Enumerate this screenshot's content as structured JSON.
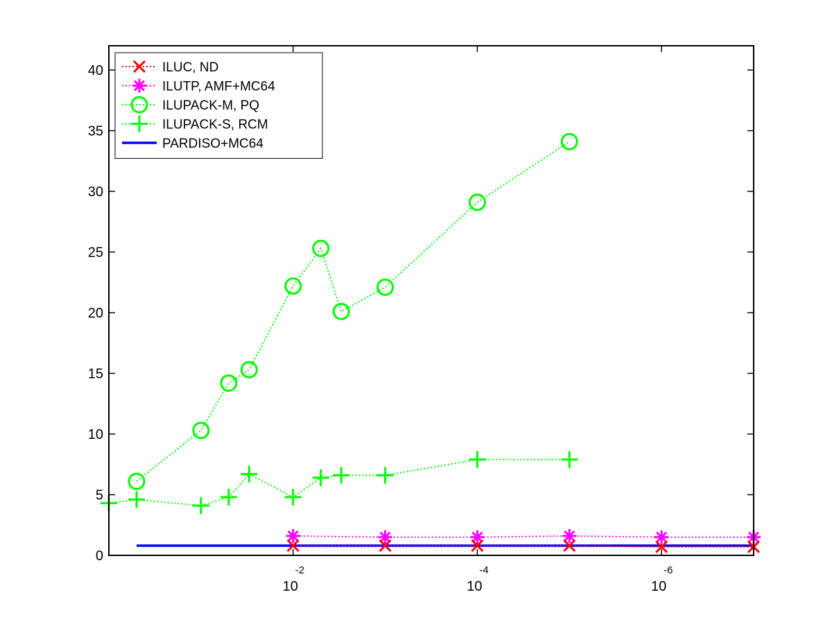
{
  "chart_data": {
    "type": "line",
    "title": "",
    "xlabel": "",
    "ylabel": "",
    "x_scale": "log",
    "x_reversed": true,
    "xlim": [
      1,
      1e-07
    ],
    "ylim": [
      0,
      42
    ],
    "grid": false,
    "legend_position": "top-left",
    "x_ticks": [
      {
        "value": 0.01,
        "base": "10",
        "exponent": "-2"
      },
      {
        "value": 0.0001,
        "base": "10",
        "exponent": "-4"
      },
      {
        "value": 1e-06,
        "base": "10",
        "exponent": "-6"
      }
    ],
    "y_ticks": [
      0,
      5,
      10,
      15,
      20,
      25,
      30,
      35,
      40
    ],
    "series": [
      {
        "name": "ILUC,  ND",
        "marker": "x",
        "line_style": "dotted",
        "color": "#ff0000",
        "x": [
          0.01,
          0.001,
          0.0001,
          1e-05,
          1e-06,
          1e-07
        ],
        "y": [
          0.8,
          0.8,
          0.8,
          0.8,
          0.7,
          0.7
        ]
      },
      {
        "name": "ILUTP, AMF+MC64",
        "marker": "asterisk",
        "line_style": "dotted",
        "color": "#ff00ff",
        "x": [
          0.01,
          0.001,
          0.0001,
          1e-05,
          1e-06,
          1e-07
        ],
        "y": [
          1.6,
          1.5,
          1.5,
          1.6,
          1.5,
          1.5
        ]
      },
      {
        "name": "ILUPACK-M, PQ",
        "marker": "circle",
        "line_style": "dotted",
        "color": "#00ff00",
        "x": [
          0.5,
          0.1,
          0.05,
          0.03,
          0.01,
          0.005,
          0.003,
          0.001,
          0.0001,
          1e-05
        ],
        "y": [
          6.1,
          10.3,
          14.2,
          15.3,
          22.2,
          25.3,
          20.1,
          22.1,
          29.1,
          34.1
        ]
      },
      {
        "name": "ILUPACK-S, RCM",
        "marker": "plus",
        "line_style": "dotted",
        "color": "#00ff00",
        "x": [
          1,
          0.5,
          0.1,
          0.05,
          0.03,
          0.01,
          0.005,
          0.003,
          0.001,
          0.0001,
          1e-05
        ],
        "y": [
          4.3,
          4.6,
          4.1,
          4.8,
          6.7,
          4.8,
          6.4,
          6.6,
          6.6,
          7.9,
          7.9
        ]
      },
      {
        "name": "PARDISO+MC64",
        "marker": "none",
        "line_style": "solid",
        "color": "#0000ff",
        "x": [
          0.5,
          1e-07
        ],
        "y": [
          0.8,
          0.8
        ]
      }
    ]
  }
}
